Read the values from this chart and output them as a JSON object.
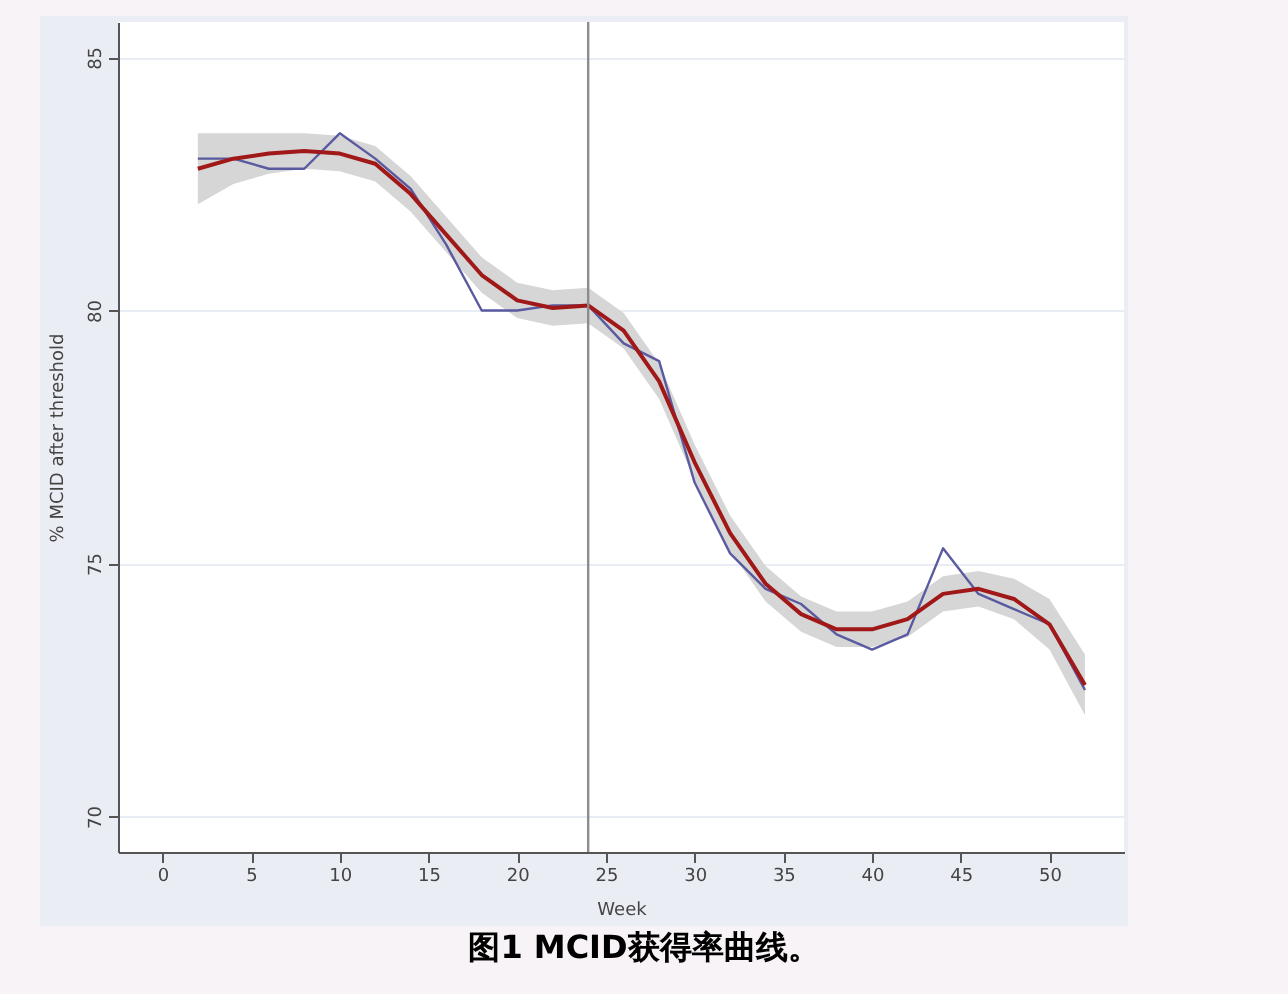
{
  "chart_data": {
    "type": "line",
    "title": "图1 MCID获得率曲线。",
    "xlabel": "Week",
    "ylabel": "% MCID after threshold",
    "x": [
      2,
      4,
      6,
      8,
      10,
      12,
      14,
      16,
      18,
      20,
      22,
      24,
      26,
      28,
      30,
      32,
      34,
      36,
      38,
      40,
      42,
      44,
      46,
      48,
      50,
      52
    ],
    "series": [
      {
        "color": "#5a5aa0",
        "values": [
          83.0,
          83.0,
          82.8,
          82.8,
          83.5,
          83.0,
          82.4,
          81.3,
          80.0,
          80.0,
          80.1,
          80.1,
          79.35,
          79.0,
          76.6,
          75.2,
          74.5,
          74.2,
          73.6,
          73.3,
          73.6,
          75.3,
          74.4,
          74.1,
          73.8,
          72.5
        ]
      },
      {
        "color": "#a01818",
        "values": [
          82.8,
          83.0,
          83.1,
          83.15,
          83.1,
          82.9,
          82.3,
          81.5,
          80.7,
          80.2,
          80.05,
          80.1,
          79.6,
          78.6,
          77.0,
          75.6,
          74.6,
          74.0,
          73.7,
          73.7,
          73.9,
          74.4,
          74.5,
          74.3,
          73.8,
          72.6
        ],
        "lower": [
          82.1,
          82.5,
          82.7,
          82.8,
          82.75,
          82.55,
          81.95,
          81.15,
          80.35,
          79.85,
          79.7,
          79.75,
          79.25,
          78.25,
          76.65,
          75.25,
          74.25,
          73.65,
          73.35,
          73.35,
          73.55,
          74.05,
          74.15,
          73.9,
          73.3,
          72.0
        ],
        "upper": [
          83.5,
          83.5,
          83.5,
          83.5,
          83.45,
          83.25,
          82.65,
          81.85,
          81.05,
          80.55,
          80.4,
          80.45,
          79.95,
          78.95,
          77.35,
          75.95,
          74.95,
          74.35,
          74.05,
          74.05,
          74.25,
          74.75,
          74.85,
          74.7,
          74.3,
          73.2
        ]
      }
    ],
    "xlim": [
      -2.5,
      54.2
    ],
    "ylim": [
      69.3,
      85.7
    ],
    "xticks": [
      0,
      5,
      10,
      15,
      20,
      25,
      30,
      35,
      40,
      45,
      50
    ],
    "yticks": [
      70,
      75,
      80,
      85
    ],
    "ref_lines": [
      {
        "axis": "x",
        "value": 24,
        "color": "#8c8c8c"
      }
    ],
    "grid": "y",
    "line_style": "solid",
    "marker": "none"
  }
}
